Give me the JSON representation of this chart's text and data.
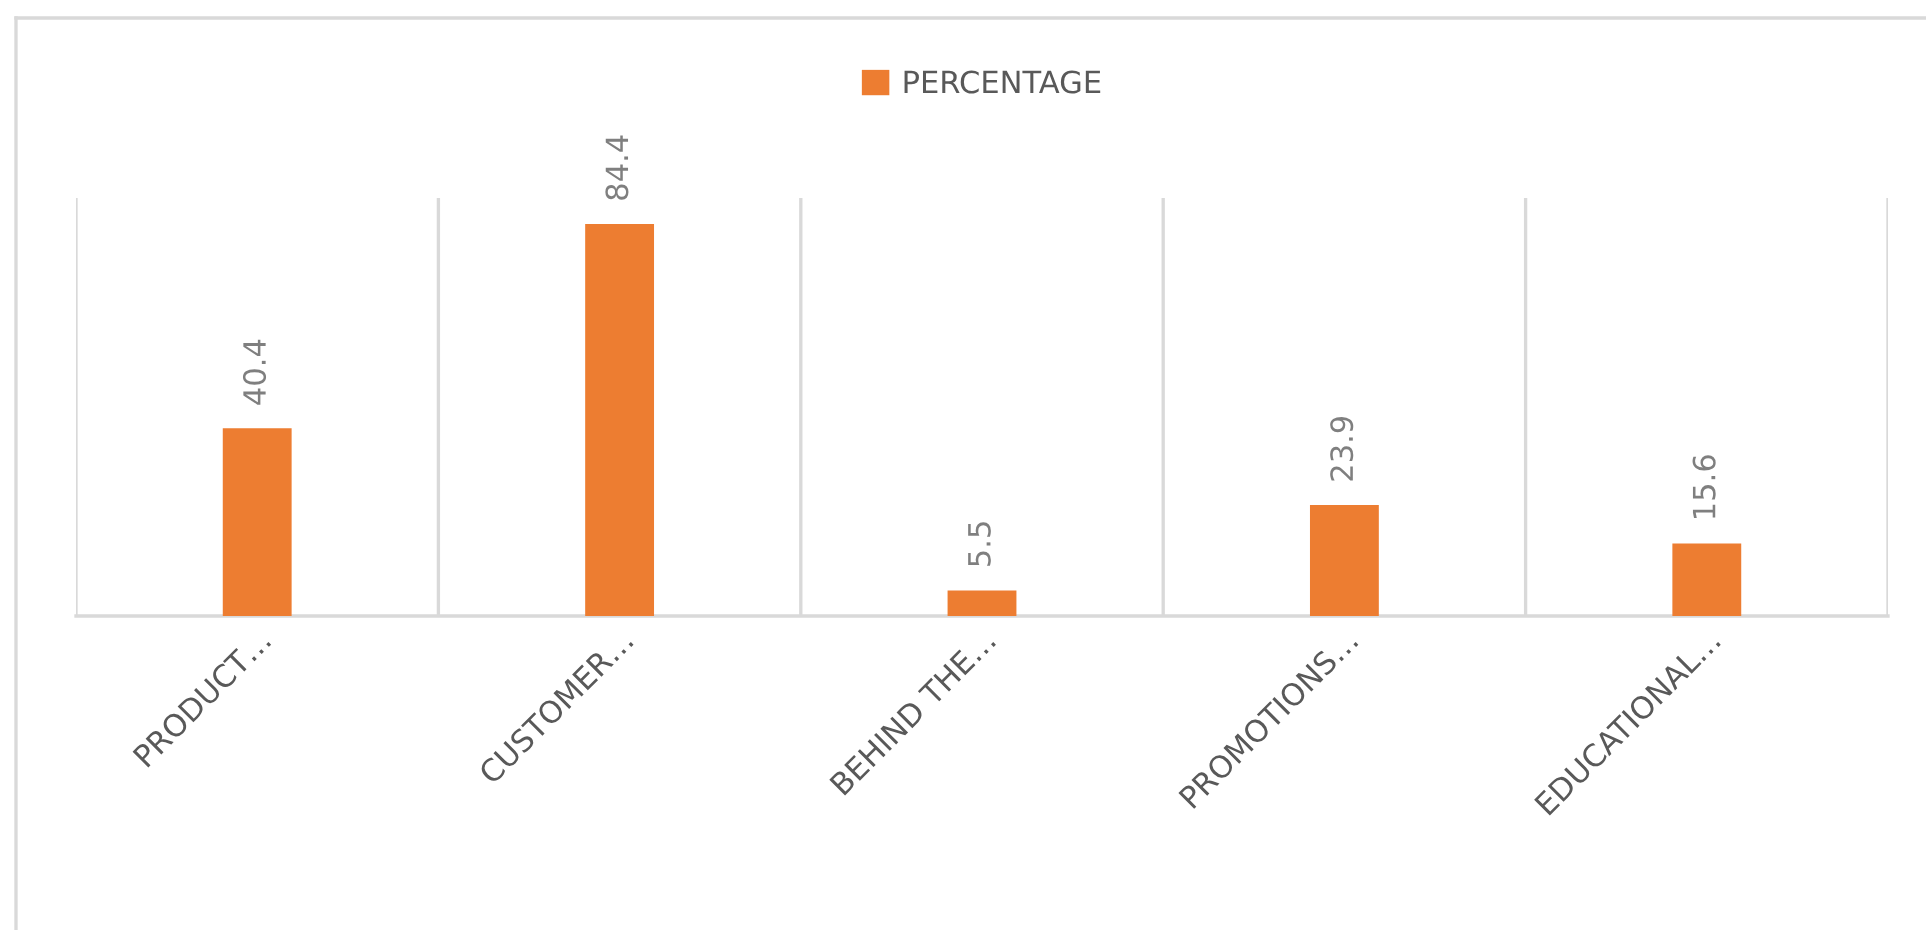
{
  "chart_data": {
    "type": "bar",
    "categories": [
      "PRODUCT…",
      "CUSTOMER…",
      "BEHIND THE…",
      "PROMOTIONS…",
      "EDUCATIONAL…"
    ],
    "series": [
      {
        "name": "PERCENTAGE",
        "color": "#ed7d31",
        "values": [
          40.4,
          84.4,
          5.5,
          23.9,
          15.6
        ]
      }
    ],
    "ylim": [
      0,
      90
    ],
    "tick_labels": "x",
    "grid": "x",
    "legend": "top",
    "data_labels": true
  }
}
